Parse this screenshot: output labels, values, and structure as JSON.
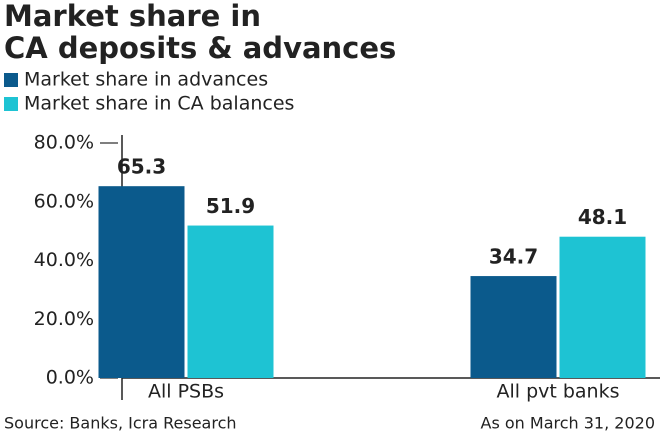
{
  "chart_data": {
    "type": "bar",
    "title": [
      "Market share in",
      "CA deposits & advances"
    ],
    "categories": [
      "All PSBs",
      "All pvt banks"
    ],
    "series": [
      {
        "name": "Market share in advances",
        "color": "#0b5a8c",
        "values": [
          65.3,
          34.7
        ]
      },
      {
        "name": "Market share in CA balances",
        "color": "#1ec3d3",
        "values": [
          51.9,
          48.1
        ]
      }
    ],
    "ylim": [
      0,
      80
    ],
    "yticks": [
      {
        "value": 0,
        "label": "0.0%"
      },
      {
        "value": 20,
        "label": "20.0%"
      },
      {
        "value": 40,
        "label": "40.0%"
      },
      {
        "value": 60,
        "label": "60.0%"
      },
      {
        "value": 80,
        "label": "80.0%"
      }
    ],
    "source": "Source: Banks, Icra Research",
    "note": "As on March 31, 2020"
  }
}
